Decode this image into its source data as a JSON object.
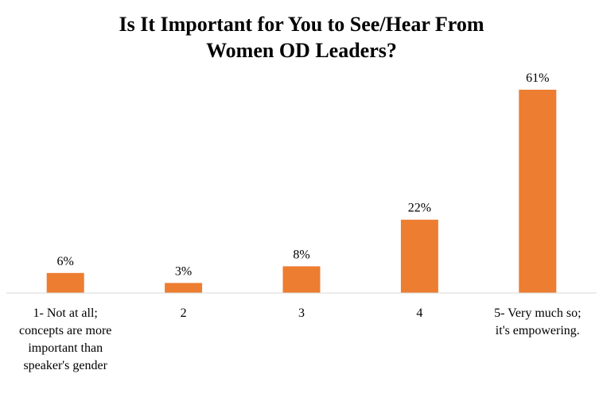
{
  "chart_data": {
    "type": "bar",
    "title": [
      "Is It Important for You to See/Hear From",
      "Women OD Leaders?"
    ],
    "xlabel": "",
    "ylabel": "",
    "categories": [
      [
        "1- Not at all;",
        "concepts are more",
        "important than",
        "speaker's gender"
      ],
      [
        "2"
      ],
      [
        "3"
      ],
      [
        "4"
      ],
      [
        "5- Very much so;",
        "it's empowering."
      ]
    ],
    "values": [
      6,
      3,
      8,
      22,
      61
    ],
    "data_labels": [
      "6%",
      "3%",
      "8%",
      "22%",
      "61%"
    ],
    "unit": "%",
    "ylim": [
      0,
      61
    ],
    "bar_color": "#ED7D31",
    "axis_color": "#D9D9D9",
    "grid": false,
    "legend": false
  }
}
